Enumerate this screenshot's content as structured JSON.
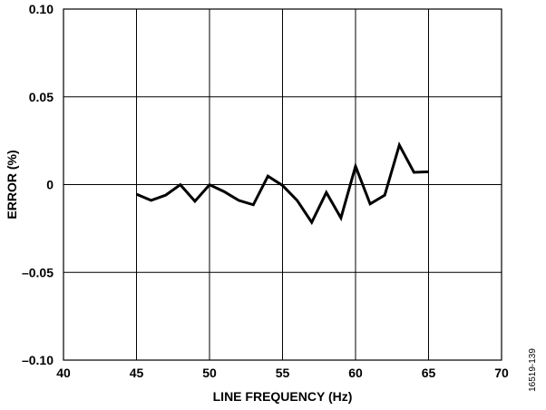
{
  "chart_data": {
    "type": "line",
    "title": "",
    "xlabel": "LINE FREQUENCY (Hz)",
    "ylabel": "ERROR (%)",
    "xlim": [
      40,
      70
    ],
    "ylim": [
      -0.1,
      0.1
    ],
    "x_ticks": [
      40,
      45,
      50,
      55,
      60,
      65,
      70
    ],
    "x_tick_labels": [
      "40",
      "45",
      "50",
      "55",
      "60",
      "65",
      "70"
    ],
    "y_ticks": [
      -0.1,
      -0.05,
      0,
      0.05,
      0.1
    ],
    "y_tick_labels": [
      "–0.10",
      "–0.05",
      "0",
      "0.05",
      "0.10"
    ],
    "grid": true,
    "line_color": "#000000",
    "series": [
      {
        "x": [
          45,
          46,
          47,
          48,
          49,
          50,
          51,
          52,
          53,
          54,
          55,
          56,
          57,
          58,
          59,
          60,
          61,
          62,
          63,
          64,
          65
        ],
        "values": [
          -0.0055,
          -0.009,
          -0.006,
          -0.0001,
          -0.0095,
          -0.0001,
          -0.004,
          -0.009,
          -0.0115,
          0.0048,
          -0.0005,
          -0.009,
          -0.0215,
          -0.0045,
          -0.019,
          0.0105,
          -0.011,
          -0.006,
          0.0225,
          0.007,
          0.0073
        ]
      }
    ]
  },
  "figure_id": "16519-139"
}
